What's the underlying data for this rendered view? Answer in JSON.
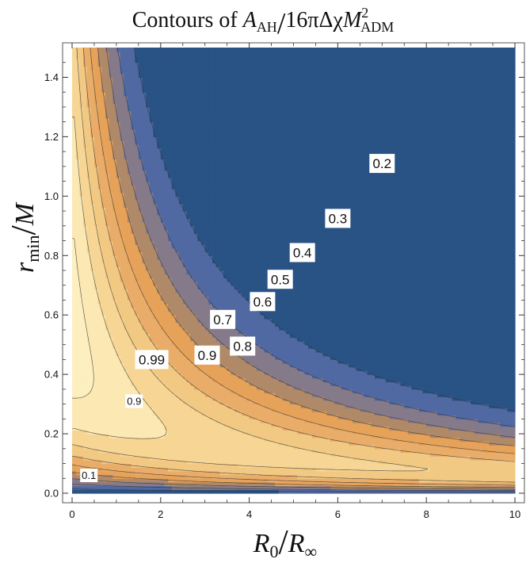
{
  "chart_data": {
    "type": "contour",
    "title": "Contours of A_AH / 16πΔχM_ADM^2",
    "title_parts": {
      "main": "Contours of ",
      "A": "A",
      "A_sub": "AH",
      "slash": "/",
      "mid": "16πΔχ",
      "M": "M",
      "M_sub": "ADM",
      "M_sup": "2"
    },
    "xlabel": "R_0/R_∞",
    "xlabel_parts": {
      "R1": "R",
      "R1_sub": "0",
      "slash": "/",
      "R2": "R",
      "R2_sub": "∞"
    },
    "ylabel": "r_min/M",
    "ylabel_parts": {
      "r": "r",
      "r_sub": "min",
      "slash": "/",
      "M": "M"
    },
    "xlim": [
      0,
      10
    ],
    "ylim": [
      0,
      1.5
    ],
    "x_ticks": [
      0,
      2,
      4,
      6,
      8,
      10
    ],
    "x_tick_labels": [
      "0",
      "2",
      "4",
      "6",
      "8",
      "10"
    ],
    "y_ticks": [
      0.0,
      0.2,
      0.4,
      0.6,
      0.8,
      1.0,
      1.2,
      1.4
    ],
    "y_tick_labels": [
      "0.0",
      "0.2",
      "0.4",
      "0.6",
      "0.8",
      "1.0",
      "1.2",
      "1.4"
    ],
    "contour_levels": [
      0.1,
      0.2,
      0.3,
      0.4,
      0.5,
      0.6,
      0.7,
      0.8,
      0.9,
      0.99
    ],
    "contour_labels": [
      {
        "text": "0.2",
        "x": 7.0,
        "y": 1.11
      },
      {
        "text": "0.3",
        "x": 6.0,
        "y": 0.925
      },
      {
        "text": "0.4",
        "x": 5.2,
        "y": 0.81
      },
      {
        "text": "0.5",
        "x": 4.7,
        "y": 0.72
      },
      {
        "text": "0.6",
        "x": 4.3,
        "y": 0.645
      },
      {
        "text": "0.7",
        "x": 3.4,
        "y": 0.585
      },
      {
        "text": "0.8",
        "x": 3.85,
        "y": 0.495
      },
      {
        "text": "0.9",
        "x": 3.05,
        "y": 0.465
      },
      {
        "text": "0.99",
        "x": 1.8,
        "y": 0.45
      },
      {
        "text": "0.9",
        "x": 1.4,
        "y": 0.31
      },
      {
        "text": "0.1",
        "x": 0.38,
        "y": 0.06
      }
    ],
    "grid": false,
    "colors": {
      "low": "#285384",
      "mid_blue": "#5069a3",
      "grey_purple": "#857a8a",
      "brown": "#b08a68",
      "orange": "#e6a259",
      "peach": "#f2c983",
      "cream": "#fce8b2",
      "pale": "#fff6d2"
    }
  }
}
